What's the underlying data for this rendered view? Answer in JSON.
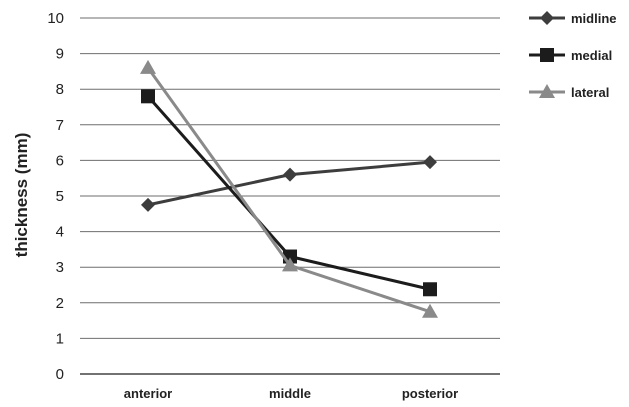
{
  "chart_data": {
    "type": "line",
    "title": "",
    "xlabel": "",
    "ylabel": "thickness (mm)",
    "ylim": [
      0,
      10
    ],
    "yticks": [
      0,
      1,
      2,
      3,
      4,
      5,
      6,
      7,
      8,
      9,
      10
    ],
    "categories": [
      "anterior",
      "middle",
      "posterior"
    ],
    "grid": true,
    "legend": "right",
    "series": [
      {
        "name": "midline",
        "marker": "diamond",
        "color": "#3d3d3d",
        "values": [
          4.75,
          5.6,
          5.95
        ]
      },
      {
        "name": "medial",
        "marker": "square",
        "color": "#1c1c1c",
        "values": [
          7.8,
          3.3,
          2.38
        ]
      },
      {
        "name": "lateral",
        "marker": "triangle",
        "color": "#8a8a8a",
        "values": [
          8.6,
          3.05,
          1.75
        ]
      }
    ]
  }
}
